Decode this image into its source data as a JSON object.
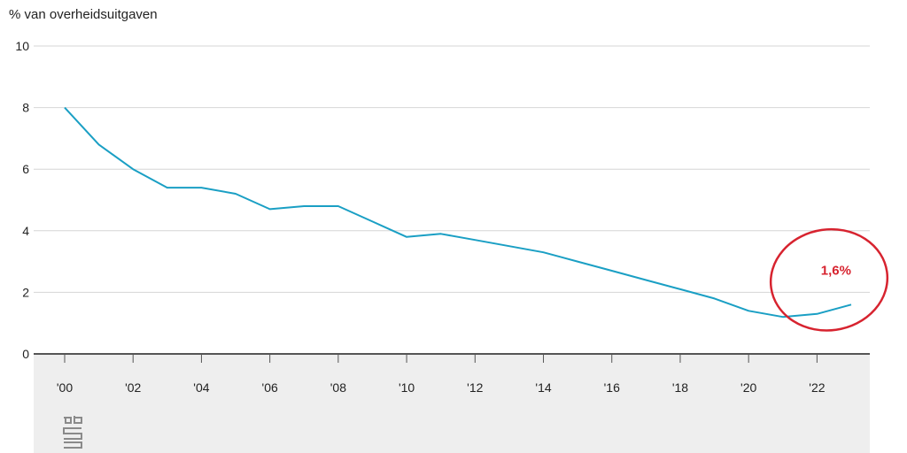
{
  "chart_data": {
    "type": "line",
    "ylabel": "% van overheidsuitgaven",
    "ylim": [
      0,
      10
    ],
    "yticks": [
      0,
      2,
      4,
      6,
      8,
      10
    ],
    "xlim": [
      2000,
      2023
    ],
    "xticks": [
      {
        "value": 2000,
        "label": "'00"
      },
      {
        "value": 2002,
        "label": "'02"
      },
      {
        "value": 2004,
        "label": "'04"
      },
      {
        "value": 2006,
        "label": "'06"
      },
      {
        "value": 2008,
        "label": "'08"
      },
      {
        "value": 2010,
        "label": "'10"
      },
      {
        "value": 2012,
        "label": "'12"
      },
      {
        "value": 2014,
        "label": "'14"
      },
      {
        "value": 2016,
        "label": "'16"
      },
      {
        "value": 2018,
        "label": "'18"
      },
      {
        "value": 2020,
        "label": "'20"
      },
      {
        "value": 2022,
        "label": "'22"
      }
    ],
    "grid": true,
    "series": [
      {
        "x": [
          2000,
          2001,
          2002,
          2003,
          2004,
          2005,
          2006,
          2007,
          2008,
          2009,
          2010,
          2011,
          2012,
          2013,
          2014,
          2015,
          2016,
          2017,
          2018,
          2019,
          2020,
          2021,
          2022,
          2023
        ],
        "values": [
          8.0,
          6.8,
          6.0,
          5.4,
          5.4,
          5.2,
          4.7,
          4.8,
          4.8,
          4.3,
          3.8,
          3.9,
          3.7,
          3.5,
          3.3,
          3.0,
          2.7,
          2.4,
          2.1,
          1.8,
          1.4,
          1.2,
          1.3,
          1.6
        ],
        "color": "#1a9fc4"
      }
    ],
    "annotation": {
      "text": "1,6%",
      "x": 2023,
      "y": 1.6,
      "color": "#d7232f"
    }
  },
  "colors": {
    "line": "#1a9fc4",
    "grid": "#d6d6d6",
    "axis": "#555555",
    "annotation": "#d7232f",
    "band": "#eeeeee"
  },
  "icons": {
    "logo": "cbs-logo"
  }
}
